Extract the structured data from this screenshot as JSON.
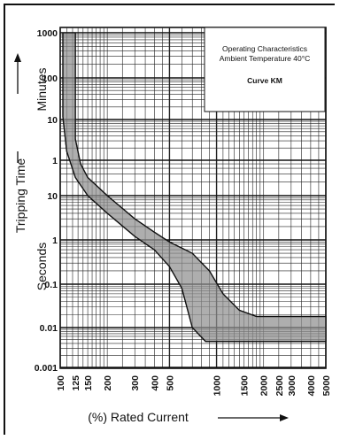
{
  "chart_data": {
    "type": "area",
    "title": "Operating Characteristics",
    "subtitle": "Ambient Temperature 40°C",
    "series_label": "Curve KM",
    "xlabel": "(%) Rated Current",
    "ylabel": "Tripping Time",
    "y_unit_upper": "Minutes",
    "y_unit_lower": "Seconds",
    "x_scale": "log",
    "y_scale": "log",
    "grid": true,
    "legend_position": "top-right",
    "xlim": [
      100,
      5000
    ],
    "x_ticks": [
      {
        "value": 100,
        "label": "100"
      },
      {
        "value": 125,
        "label": "125"
      },
      {
        "value": 150,
        "label": "150"
      },
      {
        "value": 200,
        "label": "200"
      },
      {
        "value": 300,
        "label": "300"
      },
      {
        "value": 400,
        "label": "400"
      },
      {
        "value": 500,
        "label": "500"
      },
      {
        "value": 1000,
        "label": "1000"
      },
      {
        "value": 1500,
        "label": "1500"
      },
      {
        "value": 2000,
        "label": "2000"
      },
      {
        "value": 2500,
        "label": "2500"
      },
      {
        "value": 3000,
        "label": "3000"
      },
      {
        "value": 4000,
        "label": "4000"
      },
      {
        "value": 5000,
        "label": "5000"
      }
    ],
    "y_ticks": [
      {
        "seconds": 60000,
        "label": "1000"
      },
      {
        "seconds": 6000,
        "label": "100"
      },
      {
        "seconds": 600,
        "label": "10"
      },
      {
        "seconds": 60,
        "label": "1"
      },
      {
        "seconds": 10,
        "label": "10"
      },
      {
        "seconds": 1,
        "label": "1"
      },
      {
        "seconds": 0.1,
        "label": "0.1"
      },
      {
        "seconds": 0.01,
        "label": "0.01"
      },
      {
        "seconds": 0.001,
        "label": "0.001"
      }
    ],
    "band": {
      "upper": [
        {
          "x": 125,
          "y": 60000
        },
        {
          "x": 125,
          "y": 200
        },
        {
          "x": 135,
          "y": 50
        },
        {
          "x": 150,
          "y": 25
        },
        {
          "x": 200,
          "y": 10
        },
        {
          "x": 300,
          "y": 3
        },
        {
          "x": 400,
          "y": 1.5
        },
        {
          "x": 500,
          "y": 0.9
        },
        {
          "x": 700,
          "y": 0.5
        },
        {
          "x": 900,
          "y": 0.2
        },
        {
          "x": 1100,
          "y": 0.06
        },
        {
          "x": 1400,
          "y": 0.025
        },
        {
          "x": 1800,
          "y": 0.018
        },
        {
          "x": 5000,
          "y": 0.018
        }
      ],
      "lower": [
        {
          "x": 104,
          "y": 60000
        },
        {
          "x": 104,
          "y": 700
        },
        {
          "x": 110,
          "y": 100
        },
        {
          "x": 125,
          "y": 25
        },
        {
          "x": 150,
          "y": 10
        },
        {
          "x": 200,
          "y": 4
        },
        {
          "x": 300,
          "y": 1.2
        },
        {
          "x": 400,
          "y": 0.6
        },
        {
          "x": 500,
          "y": 0.25
        },
        {
          "x": 600,
          "y": 0.08
        },
        {
          "x": 700,
          "y": 0.01
        },
        {
          "x": 850,
          "y": 0.0045
        },
        {
          "x": 5000,
          "y": 0.0045
        }
      ]
    }
  }
}
